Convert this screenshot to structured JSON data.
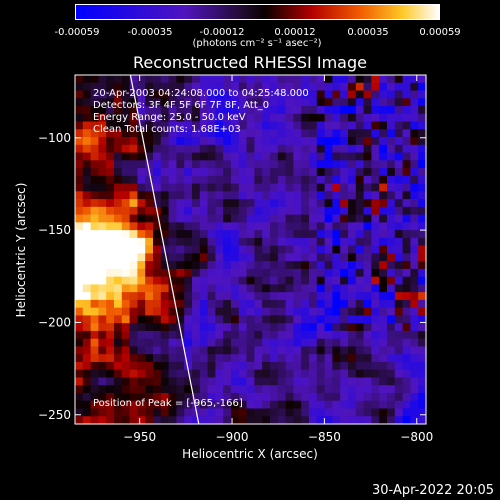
{
  "colorbar": {
    "ticks": [
      "-0.00059",
      "-0.00035",
      "-0.00012",
      "0.00012",
      "0.00035",
      "0.00059"
    ],
    "units": "(photons cm⁻² s⁻¹ asec⁻²)"
  },
  "chart_data": {
    "type": "heatmap",
    "title": "Reconstructed RHESSI Image",
    "xlabel": "Heliocentric X (arcsec)",
    "ylabel": "Heliocentric Y (arcsec)",
    "xlim": [
      -985,
      -795
    ],
    "ylim": [
      -255,
      -66
    ],
    "xticks": [
      -950,
      -900,
      -850,
      -800
    ],
    "yticks": [
      -100,
      -150,
      -200,
      -250
    ],
    "colorbar_range": [
      -0.00059,
      0.00059
    ],
    "peak": [
      -965,
      -166
    ],
    "limb_line": {
      "x": [
        -955,
        -918
      ],
      "y": [
        -66,
        -255
      ]
    },
    "annotations": [
      "20-Apr-2003 04:24:08.000 to 04:25:48.000",
      "Detectors: 3F 4F 5F 6F 7F 8F, Att_0",
      "Energy Range: 25.0 - 50.0 keV",
      "Clean    Total counts: 1.68E+03"
    ],
    "peak_label": "Position of Peak = [-965,-166]"
  },
  "footer": {
    "timestamp": "30-Apr-2022 20:05"
  }
}
